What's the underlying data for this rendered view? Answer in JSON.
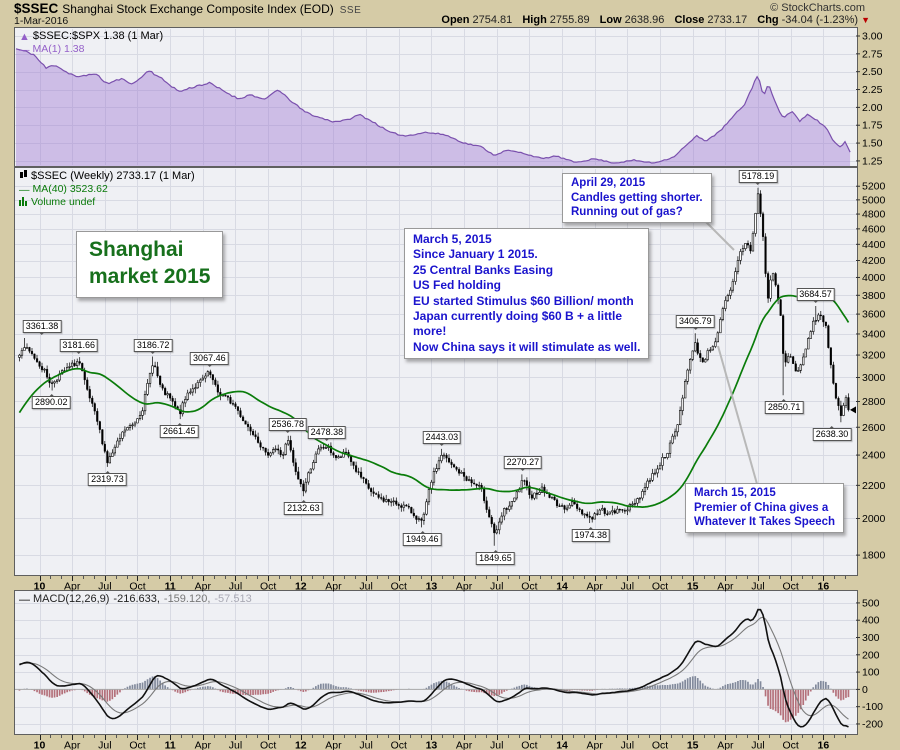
{
  "header": {
    "symbol": "$SSEC",
    "title": "Shanghai Stock Exchange Composite Index (EOD)",
    "exchange": "SSE",
    "copyright": "© StockCharts.com",
    "date": "1-Mar-2016",
    "quote": {
      "open_label": "Open",
      "open": "2754.81",
      "high_label": "High",
      "high": "2755.89",
      "low_label": "Low",
      "low": "2638.96",
      "close_label": "Close",
      "close": "2733.17",
      "chg_label": "Chg",
      "chg": "-34.04 (-1.23%)"
    }
  },
  "legends": {
    "ratio_line1": "$SSEC:$SPX 1.38 (1 Mar)",
    "ratio_line2": "MA(1) 1.38",
    "main_line1": "$SSEC (Weekly) 2733.17 (1 Mar)",
    "main_line2": "MA(40) 3523.62",
    "main_line3": "Volume undef",
    "macd_label": "MACD(12,26,9)",
    "macd_v1": "-216.633,",
    "macd_v2": "-159.120,",
    "macd_v3": "-57.513"
  },
  "annotations": {
    "shanghai": {
      "line1": "Shanghai",
      "line2": "market 2015"
    },
    "march5": {
      "lines": [
        "March 5, 2015",
        "Since January 1 2015.",
        "25 Central Banks Easing",
        "US Fed holding",
        "EU started Stimulus $60 Billion/ month",
        "Japan currently doing $60 B + a little",
        "more!",
        "Now China says it will stimulate as well."
      ]
    },
    "april29": {
      "lines": [
        "April 29, 2015",
        "Candles getting shorter.",
        "Running out of gas?"
      ]
    },
    "march15": {
      "lines": [
        "March 15, 2015",
        "Premier of China gives a",
        "Whatever It Takes Speech"
      ]
    }
  },
  "colors": {
    "page_bg": "#d5cba6",
    "plot_bg": "#eff0f4",
    "grid": "#d8dae3",
    "border": "#5f5f5f",
    "area_fill": "rgba(158,118,210,0.42)",
    "area_line": "#7a50ad",
    "ma_green": "#0a7c0a",
    "candle": "#000000",
    "macd_line": "#111111",
    "signal_line": "#7a7a7a",
    "hist_pos": "#828a9c",
    "hist_neg": "#b4717b",
    "blue_note": "#1a13cd",
    "green_note": "#17701c",
    "chg_red": "#bb0000"
  },
  "chart_data": {
    "type": [
      "area",
      "candlestick",
      "macd"
    ],
    "title": "$SSEC Shanghai Stock Exchange Composite Index (EOD) weekly with $SSEC:$SPX ratio and MACD(12,26,9)",
    "time": {
      "start": 2009.82,
      "end": 2016.25,
      "ticks": [
        [
          2010,
          "10",
          1
        ],
        [
          2010.25,
          "Apr",
          0
        ],
        [
          2010.5,
          "Jul",
          0
        ],
        [
          2010.75,
          "Oct",
          0
        ],
        [
          2011,
          "11",
          1
        ],
        [
          2011.25,
          "Apr",
          0
        ],
        [
          2011.5,
          "Jul",
          0
        ],
        [
          2011.75,
          "Oct",
          0
        ],
        [
          2012,
          "12",
          1
        ],
        [
          2012.25,
          "Apr",
          0
        ],
        [
          2012.5,
          "Jul",
          0
        ],
        [
          2012.75,
          "Oct",
          0
        ],
        [
          2013,
          "13",
          1
        ],
        [
          2013.25,
          "Apr",
          0
        ],
        [
          2013.5,
          "Jul",
          0
        ],
        [
          2013.75,
          "Oct",
          0
        ],
        [
          2014,
          "14",
          1
        ],
        [
          2014.25,
          "Apr",
          0
        ],
        [
          2014.5,
          "Jul",
          0
        ],
        [
          2014.75,
          "Oct",
          0
        ],
        [
          2015,
          "15",
          1
        ],
        [
          2015.25,
          "Apr",
          0
        ],
        [
          2015.5,
          "Jul",
          0
        ],
        [
          2015.75,
          "Oct",
          0
        ],
        [
          2016,
          "16",
          1
        ]
      ]
    },
    "ratio_panel": {
      "type": "area",
      "name": "$SSEC:$SPX",
      "current": 1.38,
      "ma_period": 1,
      "ylim": [
        1.179,
        3.112
      ],
      "yticks": [
        "3.00",
        "2.75",
        "2.50",
        "2.25",
        "2.00",
        "1.75",
        "1.50",
        "1.25"
      ],
      "points": [
        [
          2009.82,
          2.82
        ],
        [
          2009.95,
          2.75
        ],
        [
          2010.05,
          2.55
        ],
        [
          2010.12,
          2.6
        ],
        [
          2010.2,
          2.5
        ],
        [
          2010.3,
          2.42
        ],
        [
          2010.42,
          2.48
        ],
        [
          2010.52,
          2.33
        ],
        [
          2010.62,
          2.4
        ],
        [
          2010.72,
          2.33
        ],
        [
          2010.84,
          2.52
        ],
        [
          2010.95,
          2.38
        ],
        [
          2011.07,
          2.22
        ],
        [
          2011.2,
          2.3
        ],
        [
          2011.3,
          2.34
        ],
        [
          2011.42,
          2.22
        ],
        [
          2011.52,
          2.12
        ],
        [
          2011.62,
          2.18
        ],
        [
          2011.72,
          2.1
        ],
        [
          2011.82,
          2.25
        ],
        [
          2011.92,
          2.1
        ],
        [
          2012.02,
          1.95
        ],
        [
          2012.12,
          1.87
        ],
        [
          2012.25,
          1.8
        ],
        [
          2012.35,
          1.82
        ],
        [
          2012.45,
          1.9
        ],
        [
          2012.55,
          1.8
        ],
        [
          2012.68,
          1.65
        ],
        [
          2012.8,
          1.6
        ],
        [
          2012.95,
          1.65
        ],
        [
          2013.1,
          1.62
        ],
        [
          2013.25,
          1.5
        ],
        [
          2013.38,
          1.45
        ],
        [
          2013.48,
          1.33
        ],
        [
          2013.58,
          1.4
        ],
        [
          2013.7,
          1.36
        ],
        [
          2013.85,
          1.28
        ],
        [
          2013.95,
          1.32
        ],
        [
          2014.1,
          1.23
        ],
        [
          2014.25,
          1.28
        ],
        [
          2014.4,
          1.22
        ],
        [
          2014.55,
          1.26
        ],
        [
          2014.7,
          1.22
        ],
        [
          2014.85,
          1.3
        ],
        [
          2014.97,
          1.5
        ],
        [
          2015.03,
          1.6
        ],
        [
          2015.1,
          1.53
        ],
        [
          2015.2,
          1.65
        ],
        [
          2015.3,
          1.85
        ],
        [
          2015.4,
          2.05
        ],
        [
          2015.5,
          2.47
        ],
        [
          2015.54,
          2.15
        ],
        [
          2015.58,
          2.32
        ],
        [
          2015.64,
          2.05
        ],
        [
          2015.69,
          1.85
        ],
        [
          2015.76,
          1.95
        ],
        [
          2015.82,
          1.8
        ],
        [
          2015.88,
          1.9
        ],
        [
          2015.95,
          1.82
        ],
        [
          2016.02,
          1.72
        ],
        [
          2016.08,
          1.52
        ],
        [
          2016.13,
          1.45
        ],
        [
          2016.17,
          1.52
        ],
        [
          2016.2,
          1.38
        ]
      ]
    },
    "main_panel": {
      "type": "candlestick",
      "name": "$SSEC Weekly",
      "last_close": 2733.17,
      "ma_period": 40,
      "ma_last": 3523.62,
      "volume": "undef",
      "ylog": true,
      "ylim": [
        1700,
        5480
      ],
      "yticks": [
        5200,
        5000,
        4800,
        4600,
        4400,
        4200,
        4000,
        3800,
        3600,
        3400,
        3200,
        3000,
        2800,
        2600,
        2400,
        2200,
        2000,
        1800
      ],
      "series_start": 2009.0,
      "anchors": [
        [
          2009.0,
          1900
        ],
        [
          2009.1,
          2060
        ],
        [
          2009.2,
          2250
        ],
        [
          2009.3,
          2420
        ],
        [
          2009.4,
          2600
        ],
        [
          2009.5,
          2950
        ],
        [
          2009.58,
          3400
        ],
        [
          2009.66,
          2720
        ],
        [
          2009.75,
          2960
        ],
        [
          2009.82,
          3150
        ],
        [
          2009.88,
          3277,
          3361.38,
          null
        ],
        [
          2009.96,
          3180
        ],
        [
          2010.04,
          3050
        ],
        [
          2010.09,
          2940,
          null,
          2890.02
        ],
        [
          2010.15,
          3020
        ],
        [
          2010.22,
          3080
        ],
        [
          2010.3,
          3150,
          3181.66,
          null
        ],
        [
          2010.36,
          2900
        ],
        [
          2010.44,
          2650
        ],
        [
          2010.52,
          2350,
          null,
          2319.73
        ],
        [
          2010.58,
          2450
        ],
        [
          2010.65,
          2580
        ],
        [
          2010.72,
          2620
        ],
        [
          2010.79,
          2750
        ],
        [
          2010.87,
          3150,
          3186.72,
          null
        ],
        [
          2010.93,
          2900
        ],
        [
          2011.0,
          2820
        ],
        [
          2011.07,
          2700,
          null,
          2661.45
        ],
        [
          2011.14,
          2880
        ],
        [
          2011.22,
          2950
        ],
        [
          2011.3,
          3040,
          3067.46,
          null
        ],
        [
          2011.36,
          2880
        ],
        [
          2011.44,
          2820
        ],
        [
          2011.5,
          2760
        ],
        [
          2011.58,
          2620
        ],
        [
          2011.65,
          2550
        ],
        [
          2011.73,
          2400
        ],
        [
          2011.8,
          2450
        ],
        [
          2011.86,
          2395
        ],
        [
          2011.9,
          2510,
          2536.78,
          null
        ],
        [
          2011.96,
          2280
        ],
        [
          2012.02,
          2170,
          null,
          2132.63
        ],
        [
          2012.08,
          2330
        ],
        [
          2012.14,
          2440
        ],
        [
          2012.2,
          2460,
          2478.38,
          null
        ],
        [
          2012.28,
          2370
        ],
        [
          2012.35,
          2420
        ],
        [
          2012.42,
          2300
        ],
        [
          2012.5,
          2200
        ],
        [
          2012.57,
          2130
        ],
        [
          2012.64,
          2110
        ],
        [
          2012.72,
          2090
        ],
        [
          2012.8,
          2070
        ],
        [
          2012.87,
          2020
        ],
        [
          2012.93,
          1970,
          null,
          1949.46
        ],
        [
          2013.0,
          2230
        ],
        [
          2013.08,
          2410,
          2443.03,
          null
        ],
        [
          2013.15,
          2330
        ],
        [
          2013.22,
          2280
        ],
        [
          2013.3,
          2220
        ],
        [
          2013.38,
          2180
        ],
        [
          2013.44,
          2020
        ],
        [
          2013.49,
          1900,
          null,
          1849.65
        ],
        [
          2013.55,
          2040
        ],
        [
          2013.62,
          2090
        ],
        [
          2013.7,
          2230,
          2270.27,
          null
        ],
        [
          2013.77,
          2130
        ],
        [
          2013.84,
          2180
        ],
        [
          2013.92,
          2120
        ],
        [
          2014.0,
          2060
        ],
        [
          2014.08,
          2090
        ],
        [
          2014.15,
          2040
        ],
        [
          2014.22,
          2000,
          null,
          1974.38
        ],
        [
          2014.3,
          2050
        ],
        [
          2014.37,
          2030
        ],
        [
          2014.45,
          2050
        ],
        [
          2014.53,
          2070
        ],
        [
          2014.6,
          2140
        ],
        [
          2014.67,
          2240
        ],
        [
          2014.75,
          2340
        ],
        [
          2014.82,
          2450
        ],
        [
          2014.89,
          2630
        ],
        [
          2014.96,
          3080
        ],
        [
          2015.02,
          3300,
          3406.79,
          null
        ],
        [
          2015.07,
          3130
        ],
        [
          2015.12,
          3230
        ],
        [
          2015.18,
          3350
        ],
        [
          2015.24,
          3690
        ],
        [
          2015.3,
          3880
        ],
        [
          2015.36,
          4280
        ],
        [
          2015.41,
          4440
        ],
        [
          2015.44,
          4300
        ],
        [
          2015.47,
          4660
        ],
        [
          2015.5,
          5080,
          5178.19,
          null
        ],
        [
          2015.54,
          4480
        ],
        [
          2015.57,
          3720
        ],
        [
          2015.61,
          4080
        ],
        [
          2015.64,
          3880
        ],
        [
          2015.67,
          3620
        ],
        [
          2015.7,
          3100,
          null,
          2850.71
        ],
        [
          2015.74,
          3210
        ],
        [
          2015.78,
          3080
        ],
        [
          2015.82,
          3060
        ],
        [
          2015.86,
          3230
        ],
        [
          2015.9,
          3420
        ],
        [
          2015.94,
          3560,
          3684.57,
          null
        ],
        [
          2015.98,
          3590
        ],
        [
          2016.02,
          3480
        ],
        [
          2016.05,
          3160
        ],
        [
          2016.08,
          2900
        ],
        [
          2016.11,
          2760
        ],
        [
          2016.14,
          2690,
          null,
          2638.3
        ],
        [
          2016.17,
          2860
        ],
        [
          2016.2,
          2733.17
        ]
      ],
      "price_labels": [
        [
          "3361.38",
          2009.88,
          3361.38,
          "a"
        ],
        [
          "2890.02",
          2010.09,
          2890.02,
          "b"
        ],
        [
          "3181.66",
          2010.3,
          3181.66,
          "a"
        ],
        [
          "2319.73",
          2010.52,
          2319.73,
          "b"
        ],
        [
          "3186.72",
          2010.87,
          3186.72,
          "a"
        ],
        [
          "2661.45",
          2011.07,
          2661.45,
          "b"
        ],
        [
          "3067.46",
          2011.3,
          3067.46,
          "a"
        ],
        [
          "2536.78",
          2011.9,
          2536.78,
          "a"
        ],
        [
          "2132.63",
          2012.02,
          2132.63,
          "b"
        ],
        [
          "2478.38",
          2012.2,
          2478.38,
          "a"
        ],
        [
          "1949.46",
          2012.93,
          1949.46,
          "b"
        ],
        [
          "2443.03",
          2013.08,
          2443.03,
          "a"
        ],
        [
          "1849.65",
          2013.49,
          1849.65,
          "b"
        ],
        [
          "2270.27",
          2013.7,
          2270.27,
          "a"
        ],
        [
          "1974.38",
          2014.22,
          1974.38,
          "b"
        ],
        [
          "3406.79",
          2015.02,
          3406.79,
          "a"
        ],
        [
          "5178.19",
          2015.5,
          5178.19,
          "a"
        ],
        [
          "2850.71",
          2015.7,
          2850.71,
          "b"
        ],
        [
          "3684.57",
          2015.94,
          3684.57,
          "a"
        ],
        [
          "2638.30",
          2016.14,
          2638.3,
          "b"
        ]
      ]
    },
    "macd_panel": {
      "type": "macd",
      "params": [
        12,
        26,
        9
      ],
      "values": [
        -216.633,
        -159.12,
        -57.513
      ],
      "ylim": [
        -258,
        569
      ],
      "yticks": [
        500,
        400,
        300,
        200,
        100,
        0,
        -100,
        -200
      ]
    }
  }
}
